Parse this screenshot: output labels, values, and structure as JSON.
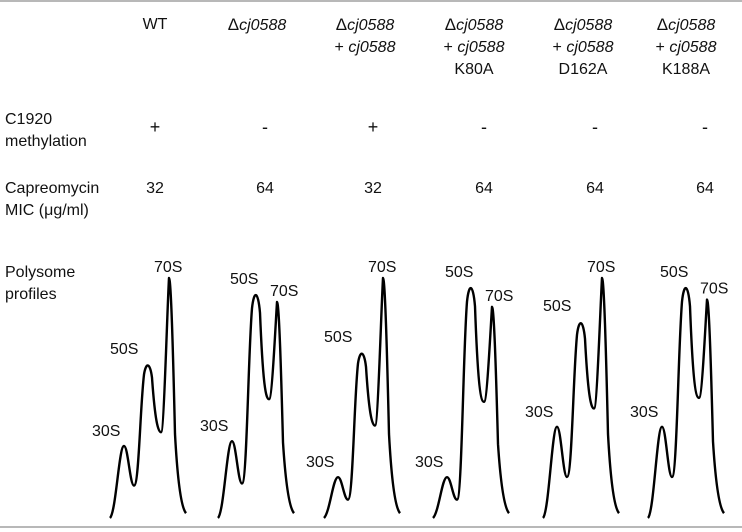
{
  "columns": [
    {
      "pre": "",
      "name": "WT",
      "name_style": "normal",
      "plus": "",
      "plus_gene": "",
      "mutation": ""
    },
    {
      "pre": "Δ",
      "name": "cj0588",
      "name_style": "italic",
      "plus": "",
      "plus_gene": "",
      "mutation": ""
    },
    {
      "pre": "Δ",
      "name": "cj0588",
      "name_style": "italic",
      "plus": "+ ",
      "plus_gene": "cj0588",
      "mutation": ""
    },
    {
      "pre": "Δ",
      "name": "cj0588",
      "name_style": "italic",
      "plus": "+ ",
      "plus_gene": "cj0588",
      "mutation": "K80A"
    },
    {
      "pre": "Δ",
      "name": "cj0588",
      "name_style": "italic",
      "plus": "+ ",
      "plus_gene": "cj0588",
      "mutation": "D162A"
    },
    {
      "pre": "Δ",
      "name": "cj0588",
      "name_style": "italic",
      "plus": "+ ",
      "plus_gene": "cj0588",
      "mutation": "K188A"
    }
  ],
  "rows": {
    "methylation": {
      "label_line1": "C1920",
      "label_line2": "methylation",
      "values": [
        "+",
        "-",
        "+",
        "-",
        "-",
        "-"
      ]
    },
    "mic": {
      "label_line1": "Capreomycin",
      "label_line2": "MIC (μg/ml)",
      "values": [
        "32",
        "64",
        "32",
        "64",
        "64",
        "64"
      ]
    },
    "polysome": {
      "label_line1": "Polysome",
      "label_line2": "profiles"
    }
  },
  "profiles": [
    {
      "peaks": {
        "30S": 0.3,
        "50S": 0.65,
        "70S": 1.0
      }
    },
    {
      "peaks": {
        "30S": 0.32,
        "50S": 0.95,
        "70S": 0.9
      }
    },
    {
      "peaks": {
        "30S": 0.17,
        "50S": 0.7,
        "70S": 1.0
      }
    },
    {
      "peaks": {
        "30S": 0.17,
        "50S": 0.98,
        "70S": 0.88
      }
    },
    {
      "peaks": {
        "30S": 0.38,
        "50S": 0.83,
        "70S": 1.0
      }
    },
    {
      "peaks": {
        "30S": 0.38,
        "50S": 0.98,
        "70S": 0.91
      }
    }
  ],
  "peak_labels": {
    "p30": "30S",
    "p50": "50S",
    "p70": "70S"
  },
  "colors": {
    "rule": "#b8b8b8",
    "text": "#111111",
    "trace": "#000000"
  }
}
